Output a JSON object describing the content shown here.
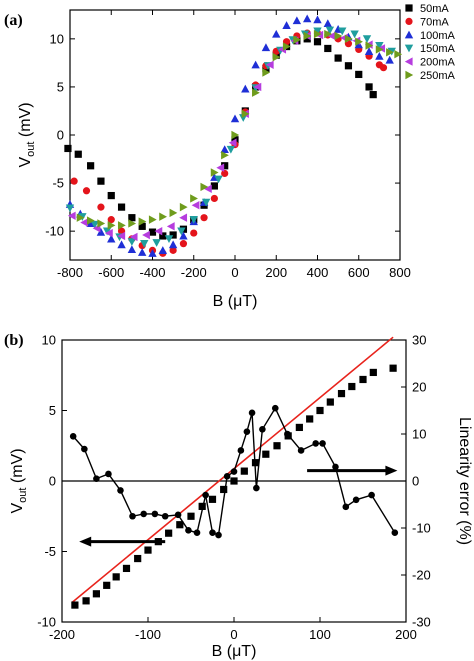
{
  "chart_data": [
    {
      "type": "scatter",
      "panel_label": "(a)",
      "xlabel_main": "B (",
      "xlabel_unit": "μT",
      "xlabel_end": ")",
      "ylabel_main": "V",
      "ylabel_sub": "out",
      "ylabel_end": " (mV)",
      "xlim": [
        -800,
        800
      ],
      "ylim": [
        -13,
        13
      ],
      "xticks": [
        -800,
        -600,
        -400,
        -200,
        0,
        200,
        400,
        600,
        800
      ],
      "yticks": [
        -10,
        -5,
        0,
        5,
        10
      ],
      "grid": false,
      "legend_position": "top-right",
      "series": [
        {
          "name": "50mA",
          "color": "#000000",
          "marker": "square",
          "x": [
            -810,
            -760,
            -700,
            -650,
            -600,
            -550,
            -500,
            -450,
            -400,
            -350,
            -300,
            -250,
            -200,
            -150,
            -100,
            -50,
            0,
            50,
            100,
            150,
            200,
            250,
            300,
            350,
            400,
            450,
            500,
            550,
            600,
            650,
            670
          ],
          "y": [
            -1.4,
            -2.0,
            -3.2,
            -4.8,
            -6.3,
            -7.5,
            -8.6,
            -9.5,
            -10.1,
            -10.5,
            -10.4,
            -9.8,
            -8.8,
            -7.3,
            -5.3,
            -3.2,
            -0.5,
            2.5,
            5.0,
            6.9,
            8.3,
            9.2,
            9.8,
            10.0,
            9.7,
            9.0,
            8.0,
            7.2,
            6.3,
            5.0,
            4.2
          ]
        },
        {
          "name": "70mA",
          "color": "#e4141b",
          "marker": "circle",
          "x": [
            -780,
            -720,
            -650,
            -600,
            -550,
            -500,
            -450,
            -400,
            -350,
            -300,
            -250,
            -200,
            -150,
            -100,
            -50,
            0,
            50,
            100,
            150,
            200,
            250,
            300,
            350,
            400,
            450,
            500,
            550,
            600,
            650,
            700,
            720
          ],
          "y": [
            -4.8,
            -5.8,
            -7.5,
            -8.8,
            -10.0,
            -10.8,
            -11.5,
            -12.0,
            -12.3,
            -12.0,
            -11.3,
            -10.2,
            -8.6,
            -6.6,
            -4.0,
            -1.0,
            2.4,
            5.2,
            7.2,
            8.7,
            9.7,
            10.3,
            10.6,
            10.6,
            10.4,
            10.0,
            9.5,
            8.9,
            8.2,
            7.3,
            7.0
          ]
        },
        {
          "name": "100mA",
          "color": "#1f2fd6",
          "marker": "triangle",
          "x": [
            -800,
            -750,
            -700,
            -650,
            -600,
            -550,
            -500,
            -450,
            -400,
            -350,
            -300,
            -250,
            -200,
            -150,
            -100,
            -50,
            0,
            50,
            100,
            150,
            200,
            250,
            300,
            350,
            400,
            450,
            500,
            550,
            600,
            650,
            700,
            750
          ],
          "y": [
            -7.2,
            -8.2,
            -9.2,
            -10.1,
            -10.8,
            -11.4,
            -11.9,
            -12.2,
            -12.3,
            -12.0,
            -11.4,
            -10.5,
            -9.0,
            -7.0,
            -4.4,
            -1.5,
            1.7,
            4.8,
            7.3,
            9.1,
            10.5,
            11.4,
            11.9,
            12.1,
            12.0,
            11.6,
            11.0,
            10.2,
            9.4,
            8.7,
            8.2,
            7.8
          ]
        },
        {
          "name": "150mA",
          "color": "#1f9e9e",
          "marker": "triangle-down",
          "x": [
            -800,
            -740,
            -680,
            -620,
            -560,
            -500,
            -440,
            -380,
            -320,
            -260,
            -200,
            -140,
            -80,
            -20,
            40,
            100,
            160,
            220,
            280,
            340,
            400,
            460,
            520,
            580,
            640,
            700,
            760
          ],
          "y": [
            -7.6,
            -8.5,
            -9.3,
            -10.0,
            -10.6,
            -11.1,
            -11.3,
            -11.2,
            -10.8,
            -10.0,
            -8.8,
            -7.0,
            -4.6,
            -1.5,
            1.8,
            4.9,
            7.2,
            8.8,
            9.9,
            10.5,
            10.8,
            10.9,
            10.8,
            10.5,
            10.0,
            9.3,
            8.7
          ]
        },
        {
          "name": "200mA",
          "color": "#b63dde",
          "marker": "triangle-left",
          "x": [
            -790,
            -730,
            -670,
            -610,
            -550,
            -490,
            -430,
            -370,
            -310,
            -250,
            -190,
            -130,
            -70,
            -10,
            50,
            110,
            170,
            230,
            290,
            350,
            410,
            470,
            530,
            590,
            650,
            710
          ],
          "y": [
            -8.4,
            -9.1,
            -9.7,
            -10.2,
            -10.5,
            -10.6,
            -10.4,
            -10.0,
            -9.5,
            -8.6,
            -7.3,
            -5.6,
            -3.4,
            -0.8,
            2.2,
            5.0,
            7.3,
            8.9,
            9.8,
            10.3,
            10.4,
            10.3,
            10.1,
            9.8,
            9.4,
            9.0
          ]
        },
        {
          "name": "250mA",
          "color": "#6f9c1d",
          "marker": "triangle-right",
          "x": [
            -750,
            -700,
            -650,
            -600,
            -550,
            -500,
            -450,
            -400,
            -350,
            -300,
            -250,
            -200,
            -150,
            -100,
            -50,
            0,
            50,
            100,
            150,
            200,
            250,
            300,
            350,
            400,
            450,
            500,
            550,
            600,
            650,
            700,
            750,
            790
          ],
          "y": [
            -8.6,
            -8.9,
            -9.2,
            -9.4,
            -9.4,
            -9.2,
            -9.0,
            -8.8,
            -8.5,
            -8.1,
            -7.5,
            -6.6,
            -5.4,
            -3.9,
            -2.1,
            0.0,
            2.2,
            4.4,
            6.5,
            8.1,
            9.2,
            9.9,
            10.3,
            10.5,
            10.5,
            10.3,
            10.0,
            9.7,
            9.3,
            8.9,
            8.6,
            8.4
          ]
        }
      ]
    },
    {
      "type": "scatter",
      "panel_label": "(b)",
      "xlabel_main": "B (",
      "xlabel_unit": "μT",
      "xlabel_end": ")",
      "ylabel_main": "V",
      "ylabel_sub": "out",
      "ylabel_end": " (mV)",
      "y2label": "Linearity error (%)",
      "xlim": [
        -200,
        200
      ],
      "ylim": [
        -10,
        10
      ],
      "y2lim": [
        -30,
        30
      ],
      "xticks": [
        -200,
        -100,
        0,
        100,
        200
      ],
      "yticks": [
        -10,
        -5,
        0,
        5,
        10
      ],
      "y2ticks": [
        -30,
        -20,
        -10,
        0,
        10,
        20,
        30
      ],
      "grid": false,
      "zero_line": true,
      "fit_line": {
        "x": [
          -188,
          185
        ],
        "y": [
          -8.6,
          10.2
        ],
        "color": "#e8231c"
      },
      "voltage_points": {
        "x": [
          -185,
          -172,
          -160,
          -148,
          -137,
          -125,
          -112,
          -100,
          -88,
          -76,
          -63,
          -50,
          -37,
          -25,
          -12,
          0,
          12,
          25,
          37,
          50,
          63,
          76,
          88,
          100,
          112,
          125,
          137,
          150,
          162,
          185
        ],
        "y": [
          -8.8,
          -8.5,
          -8.0,
          -7.4,
          -6.8,
          -6.2,
          -5.5,
          -4.9,
          -4.3,
          -3.7,
          -3.1,
          -2.5,
          -1.8,
          -1.3,
          -0.6,
          0.0,
          0.7,
          1.3,
          1.9,
          2.5,
          3.2,
          3.8,
          4.4,
          5.0,
          5.6,
          6.2,
          6.7,
          7.2,
          7.7,
          8.0
        ]
      },
      "error_series": {
        "x": [
          -187,
          -174,
          -160,
          -146,
          -132,
          -118,
          -105,
          -92,
          -80,
          -65,
          -53,
          -43,
          -33,
          -25,
          -18,
          -8,
          0,
          8,
          15,
          21,
          26,
          33,
          48,
          62,
          78,
          95,
          103,
          118,
          130,
          142,
          160,
          187
        ],
        "y": [
          9.5,
          6.8,
          0.5,
          1.5,
          -2.0,
          -7.5,
          -7.0,
          -7.0,
          -7.5,
          -7.2,
          -10.5,
          -11.0,
          -3.0,
          -11.0,
          -11.5,
          1.0,
          2.0,
          6.5,
          10.5,
          14.5,
          -1.5,
          11.0,
          15.5,
          10.0,
          6.5,
          8.0,
          8.0,
          3.0,
          -5.5,
          -4.0,
          -3.0,
          -11.0
        ]
      },
      "arrows": [
        {
          "axis": "left",
          "direction": "left",
          "from": [
            -80,
            -4.3
          ],
          "to": [
            -180,
            -4.3
          ]
        },
        {
          "axis": "right",
          "direction": "right",
          "from": [
            85,
            2.2
          ],
          "to": [
            190,
            2.2
          ]
        }
      ]
    }
  ]
}
